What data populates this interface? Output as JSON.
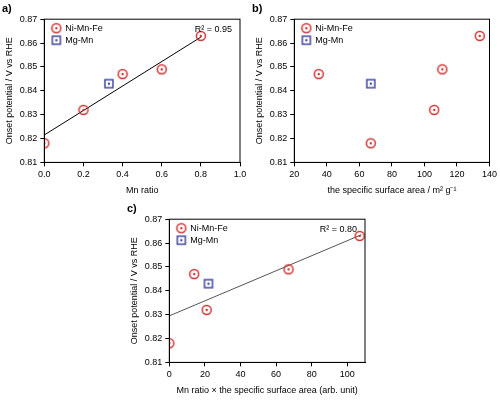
{
  "chart_data": [
    {
      "type": "scatter",
      "title": "a)",
      "x_label": "Mn ratio",
      "y_label": "Onset potential / V vs RHE",
      "xlim": [
        0,
        1
      ],
      "xticks": [
        {
          "value": 0,
          "label": "0.0"
        },
        0.2,
        0.4,
        0.6,
        0.8,
        {
          "value": 1,
          "label": "1.0"
        }
      ],
      "ylim": [
        0.81,
        0.87
      ],
      "yticks": [
        0.81,
        0.82,
        0.83,
        0.84,
        0.85,
        0.86,
        0.87
      ],
      "grid": false,
      "legend": "upper left",
      "annotation": "R² = 0.95",
      "series": [
        {
          "name": "Ni-Mn-Fe",
          "color": "#d03030",
          "marker": "circle",
          "x": [
            0,
            0.2,
            0.4,
            0.6,
            0.8
          ],
          "values": [
            0.818,
            0.832,
            0.847,
            0.849,
            0.863
          ]
        },
        {
          "name": "Mg-Mn",
          "color": "#4048a0",
          "marker": "square",
          "x": [
            0.33
          ],
          "values": [
            0.843
          ]
        },
        {
          "type": "line",
          "color": "#000000",
          "x": [
            0,
            0.8
          ],
          "values": [
            0.8215,
            0.8625
          ]
        }
      ]
    },
    {
      "type": "scatter",
      "title": "b)",
      "x_label": "the specific surface area / m² g⁻¹",
      "y_label": "Onset potential / V vs RHE",
      "xlim": [
        20,
        140
      ],
      "xticks": [
        20,
        40,
        60,
        80,
        100,
        120,
        140
      ],
      "ylim": [
        0.81,
        0.87
      ],
      "yticks": [
        0.81,
        0.82,
        0.83,
        0.84,
        0.85,
        0.86,
        0.87
      ],
      "grid": false,
      "legend": "upper left",
      "series": [
        {
          "name": "Ni-Mn-Fe",
          "color": "#d03030",
          "marker": "circle",
          "x": [
            35,
            67,
            106,
            111,
            134
          ],
          "values": [
            0.847,
            0.818,
            0.832,
            0.849,
            0.863
          ]
        },
        {
          "name": "Mg-Mn",
          "color": "#4048a0",
          "marker": "square",
          "x": [
            67
          ],
          "values": [
            0.843
          ]
        }
      ]
    },
    {
      "type": "scatter",
      "title": "c)",
      "x_label": "Mn ratio × the specific surface area (arb. unit)",
      "y_label": "Onset potential / V vs RHE",
      "xlim": [
        0,
        110
      ],
      "xticks": [
        0,
        20,
        40,
        60,
        80,
        100
      ],
      "ylim": [
        0.81,
        0.87
      ],
      "yticks": [
        0.81,
        0.82,
        0.83,
        0.84,
        0.85,
        0.86,
        0.87
      ],
      "grid": false,
      "legend": "upper left",
      "annotation": "R² = 0.80",
      "series": [
        {
          "name": "Ni-Mn-Fe",
          "color": "#d03030",
          "marker": "circle",
          "x": [
            0,
            14,
            21,
            67,
            107
          ],
          "values": [
            0.818,
            0.847,
            0.832,
            0.849,
            0.863
          ]
        },
        {
          "name": "Mg-Mn",
          "color": "#4048a0",
          "marker": "square",
          "x": [
            22
          ],
          "values": [
            0.843
          ]
        },
        {
          "type": "line",
          "color": "#555555",
          "x": [
            0,
            108
          ],
          "values": [
            0.8295,
            0.8635
          ]
        }
      ]
    }
  ]
}
